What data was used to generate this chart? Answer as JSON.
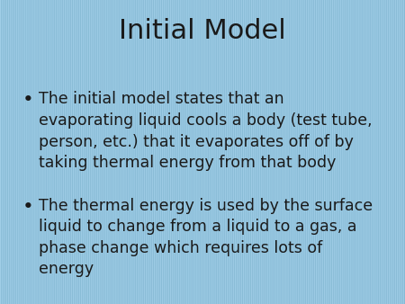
{
  "title": "Initial Model",
  "title_fontsize": 22,
  "title_color": "#1a1a1a",
  "bullet_fontsize": 12.5,
  "bullet_color": "#1a1a1a",
  "background_top": "#add8f0",
  "background_bottom": "#7ab0cc",
  "bullet_points": [
    "The initial model states that an\nevaporating liquid cools a body (test tube,\nperson, etc.) that it evaporates off of by\ntaking thermal energy from that body",
    "The thermal energy is used by the surface\nliquid to change from a liquid to a gas, a\nphase change which requires lots of\nenergy"
  ],
  "fig_width": 4.5,
  "fig_height": 3.38,
  "dpi": 100
}
